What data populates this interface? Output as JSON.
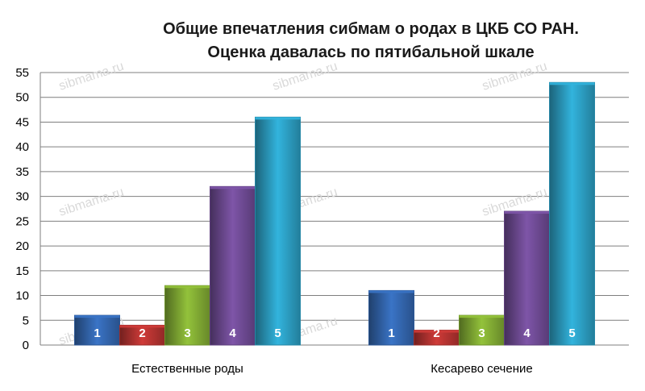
{
  "chart_data": {
    "type": "bar",
    "title_line1": "Общие впечатления сибмам о родах в ЦКБ СО РАН.",
    "title_line2": "Оценка давалась по пятибальной шкале",
    "categories": [
      "Естественные роды",
      "Кесарево сечение"
    ],
    "series": [
      {
        "name": "1",
        "values": [
          6,
          11
        ],
        "color": "#3a74c6"
      },
      {
        "name": "2",
        "values": [
          4,
          3
        ],
        "color": "#cf3b38"
      },
      {
        "name": "3",
        "values": [
          12,
          6
        ],
        "color": "#93c23b"
      },
      {
        "name": "4",
        "values": [
          32,
          27
        ],
        "color": "#7e55a8"
      },
      {
        "name": "5",
        "values": [
          46,
          53
        ],
        "color": "#32b4dd"
      }
    ],
    "ylim": [
      0,
      55
    ],
    "yticks": [
      0,
      5,
      10,
      15,
      20,
      25,
      30,
      35,
      40,
      45,
      50,
      55
    ],
    "grid": true,
    "watermark": "sibmama.ru"
  }
}
